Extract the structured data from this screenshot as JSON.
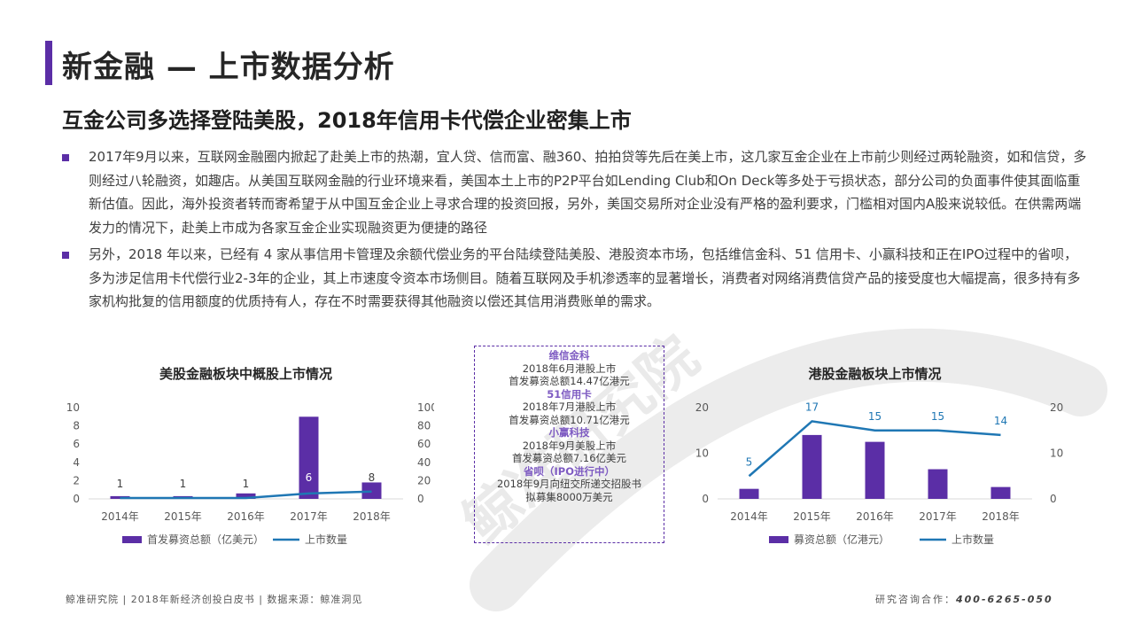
{
  "header": {
    "title": "新金融 — 上市数据分析",
    "subtitle": "互金公司多选择登陆美股，2018年信用卡代偿企业密集上市"
  },
  "bullets": [
    "2017年9月以来，互联网金融圈内掀起了赴美上市的热潮，宜人贷、信而富、融360、拍拍贷等先后在美上市，这几家互金企业在上市前少则经过两轮融资，如和信贷，多则经过八轮融资，如趣店。从美国互联网金融的行业环境来看，美国本土上市的P2P平台如Lending Club和On Deck等多处于亏损状态，部分公司的负面事件使其面临重新估值。因此，海外投资者转而寄希望于从中国互金企业上寻求合理的投资回报，另外，美国交易所对企业没有严格的盈利要求，门槛相对国内A股来说较低。在供需两端发力的情况下，赴美上市成为各家互金企业实现融资更为便捷的路径",
    "另外，2018 年以来，已经有 4 家从事信用卡管理及余额代偿业务的平台陆续登陆美股、港股资本市场，包括维信金科、51 信用卡、小赢科技和正在IPO过程中的省呗，多为涉足信用卡代偿行业2-3年的企业，其上市速度令资本市场侧目。随着互联网及手机渗透率的显著增长，消费者对网络消费信贷产品的接受度也大幅提高，很多持有多家机构批复的信用额度的优质持有人，存在不时需要获得其他融资以偿还其信用消费账单的需求。"
  ],
  "watermark": "鲸准研究院",
  "info_box": [
    {
      "name": "维信金科",
      "lines": [
        "2018年6月港股上市",
        "首发募资总额14.47亿港元"
      ]
    },
    {
      "name": "51信用卡",
      "lines": [
        "2018年7月港股上市",
        "首发募资总额10.71亿港元"
      ]
    },
    {
      "name": "小赢科技",
      "lines": [
        "2018年9月美股上市",
        "首发募资总额7.16亿美元"
      ]
    },
    {
      "name": "省呗（IPO进行中）",
      "lines": [
        "2018年9月向纽交所递交招股书",
        "拟募集8000万美元"
      ]
    }
  ],
  "footer": {
    "left": "鲸准研究院 | 2018年新经济创投白皮书 | 数据来源：鲸准洞见",
    "right_label": "研究咨询合作：",
    "right_phone": "400-6265-050"
  },
  "colors": {
    "accent": "#5b2ea6",
    "bar": "#5b2ea6",
    "line": "#1f77b4"
  },
  "chart_data": [
    {
      "type": "bar",
      "title": "美股金融板块中概股上市情况",
      "categories": [
        "2014年",
        "2015年",
        "2016年",
        "2017年",
        "2018年"
      ],
      "series": [
        {
          "name": "首发募资总额（亿美元）",
          "type": "bar",
          "axis": "left",
          "values": [
            0.3,
            0.3,
            0.6,
            9.0,
            1.8
          ]
        },
        {
          "name": "上市数量",
          "type": "line",
          "axis": "right",
          "values": [
            1,
            1,
            1,
            6,
            8
          ],
          "labels": [
            "1",
            "1",
            "1",
            "6",
            "8"
          ]
        }
      ],
      "ylim": [
        0,
        10
      ],
      "yticks": [
        0,
        2,
        4,
        6,
        8,
        10
      ],
      "y2lim": [
        0,
        100
      ],
      "y2ticks": [
        0,
        20,
        40,
        60,
        80,
        100
      ],
      "legend": "bottom"
    },
    {
      "type": "bar",
      "title": "港股金融板块上市情况",
      "categories": [
        "2014年",
        "2015年",
        "2016年",
        "2017年",
        "2018年"
      ],
      "series": [
        {
          "name": "募资总额（亿港元）",
          "type": "bar",
          "axis": "right",
          "values": [
            220,
            1400,
            1250,
            650,
            260
          ]
        },
        {
          "name": "上市数量",
          "type": "line",
          "axis": "left",
          "values": [
            5,
            17,
            15,
            15,
            14
          ],
          "labels": [
            "5",
            "17",
            "15",
            "15",
            "14"
          ]
        }
      ],
      "ylim": [
        0,
        20
      ],
      "yticks": [
        0,
        10,
        20
      ],
      "y2lim": [
        0,
        2000
      ],
      "y2ticks": [
        0,
        1000,
        2000
      ],
      "legend": "bottom"
    }
  ]
}
